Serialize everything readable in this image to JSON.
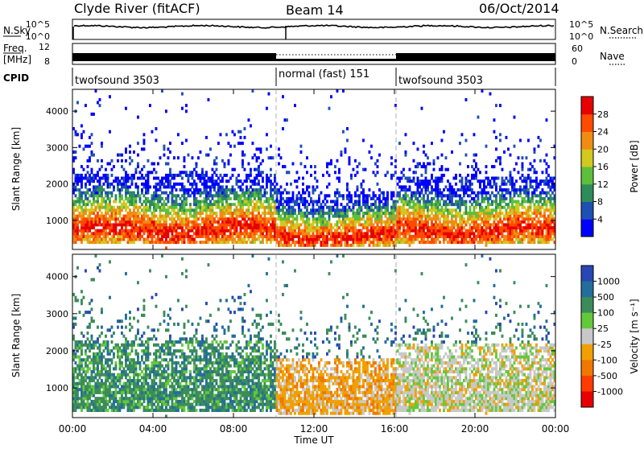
{
  "header": {
    "station": "Clyde River (fitACF)",
    "beam": "Beam 14",
    "date": "06/Oct/2014"
  },
  "panel_labels": {
    "nsky": "N.Sky",
    "nsearch": "N.Search",
    "freq": "Freq.",
    "freq_unit": "[MHz]",
    "nave": "Nave",
    "cpid": "CPID",
    "n_ticks": [
      "10^5",
      "10^0"
    ],
    "freq_ticks": [
      "12",
      "8"
    ],
    "nave_ticks": [
      "60",
      "0"
    ]
  },
  "cpid_segments": [
    {
      "label": "twofsound 3503",
      "start_hour": 0,
      "end_hour": 10
    },
    {
      "label": "normal (fast) 151",
      "start_hour": 10,
      "end_hour": 16
    },
    {
      "label": "twofsound 3503",
      "start_hour": 16,
      "end_hour": 24
    }
  ],
  "time_axis": {
    "label": "Time UT",
    "ticks": [
      "00:00",
      "04:00",
      "08:00",
      "12:00",
      "16:00",
      "20:00",
      "00:00"
    ],
    "range_hours": [
      0,
      24
    ]
  },
  "range_axis": {
    "label": "Slant Range [km]",
    "ticks": [
      "1000",
      "2000",
      "3000",
      "4000"
    ],
    "ylim_km": [
      200,
      4600
    ]
  },
  "power_scale": {
    "label": "Power [dB]",
    "ticks": [
      "4",
      "8",
      "12",
      "16",
      "20",
      "24",
      "28"
    ],
    "colors": [
      "#0000ff",
      "#1e50b4",
      "#2e8c5a",
      "#5fbe3c",
      "#d2c81e",
      "#f08c14",
      "#ff4b00",
      "#e60000"
    ]
  },
  "velocity_scale": {
    "label": "Velocity [m s⁻¹]",
    "ticks": [
      "1000",
      "500",
      "100",
      "25",
      "-25",
      "-100",
      "-500",
      "-1000"
    ],
    "colors": [
      "#2846b4",
      "#236e9b",
      "#3c8c5a",
      "#64c83c",
      "#c8c8c8",
      "#f0a000",
      "#f07800",
      "#ff3c00",
      "#e60000"
    ]
  },
  "chart_data": [
    {
      "type": "heatmap",
      "title": "Power",
      "xlabel": "Time UT",
      "ylabel": "Slant Range [km]",
      "x_range_hours": [
        0,
        24
      ],
      "ylim_km": [
        200,
        4600
      ],
      "colorbar_label": "Power [dB]",
      "echo_bands": [
        {
          "start_hour": 0,
          "end_hour": 10,
          "range_km": [
            400,
            2300
          ],
          "peak_power_db": 28
        },
        {
          "start_hour": 10,
          "end_hour": 16,
          "range_km": [
            300,
            1800
          ],
          "peak_power_db": 28
        },
        {
          "start_hour": 16,
          "end_hour": 24,
          "range_km": [
            400,
            2200
          ],
          "peak_power_db": 28
        }
      ]
    },
    {
      "type": "heatmap",
      "title": "Velocity",
      "xlabel": "Time UT",
      "ylabel": "Slant Range [km]",
      "x_range_hours": [
        0,
        24
      ],
      "ylim_km": [
        200,
        4600
      ],
      "colorbar_label": "Velocity [m s⁻¹]",
      "echo_bands": [
        {
          "start_hour": 0,
          "end_hour": 10,
          "range_km": [
            400,
            2300
          ],
          "typical_velocity_ms": 100
        },
        {
          "start_hour": 10,
          "end_hour": 16,
          "range_km": [
            300,
            1800
          ],
          "typical_velocity_ms": -100
        },
        {
          "start_hour": 16,
          "end_hour": 24,
          "range_km": [
            400,
            2200
          ],
          "typical_velocity_ms": 25
        }
      ]
    }
  ]
}
